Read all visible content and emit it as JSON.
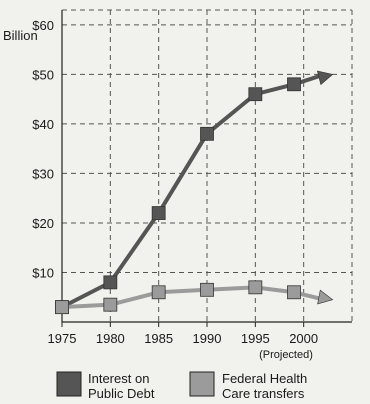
{
  "chart_data": {
    "type": "line",
    "x": [
      1975,
      1980,
      1985,
      1990,
      1995,
      2000
    ],
    "xtick_labels": [
      "1975",
      "1980",
      "1985",
      "1990",
      "1995",
      "2000"
    ],
    "x_note": "(Projected)",
    "ytick_labels": [
      "$10",
      "$20",
      "$30",
      "$40",
      "$50",
      "$60"
    ],
    "yticks": [
      10,
      20,
      30,
      40,
      50,
      60
    ],
    "yunit": "Billion",
    "ylim": [
      0,
      63
    ],
    "grid": true,
    "legend_position": "bottom",
    "series": [
      {
        "name": "Interest on Public Debt",
        "name_lines": [
          "Interest on",
          "Public Debt"
        ],
        "color": "#555555",
        "x": [
          1975,
          1980,
          1985,
          1990,
          1995,
          1999
        ],
        "values": [
          3,
          8,
          22,
          38,
          46,
          48
        ],
        "arrow_to": [
          2003,
          50
        ]
      },
      {
        "name": "Federal Health Care transfers",
        "name_lines": [
          "Federal Health",
          "Care transfers"
        ],
        "color": "#9b9b9b",
        "x": [
          1975,
          1980,
          1985,
          1990,
          1995,
          1999
        ],
        "values": [
          3,
          3.5,
          6,
          6.5,
          7,
          6
        ],
        "arrow_to": [
          2003,
          4.5
        ]
      }
    ]
  }
}
